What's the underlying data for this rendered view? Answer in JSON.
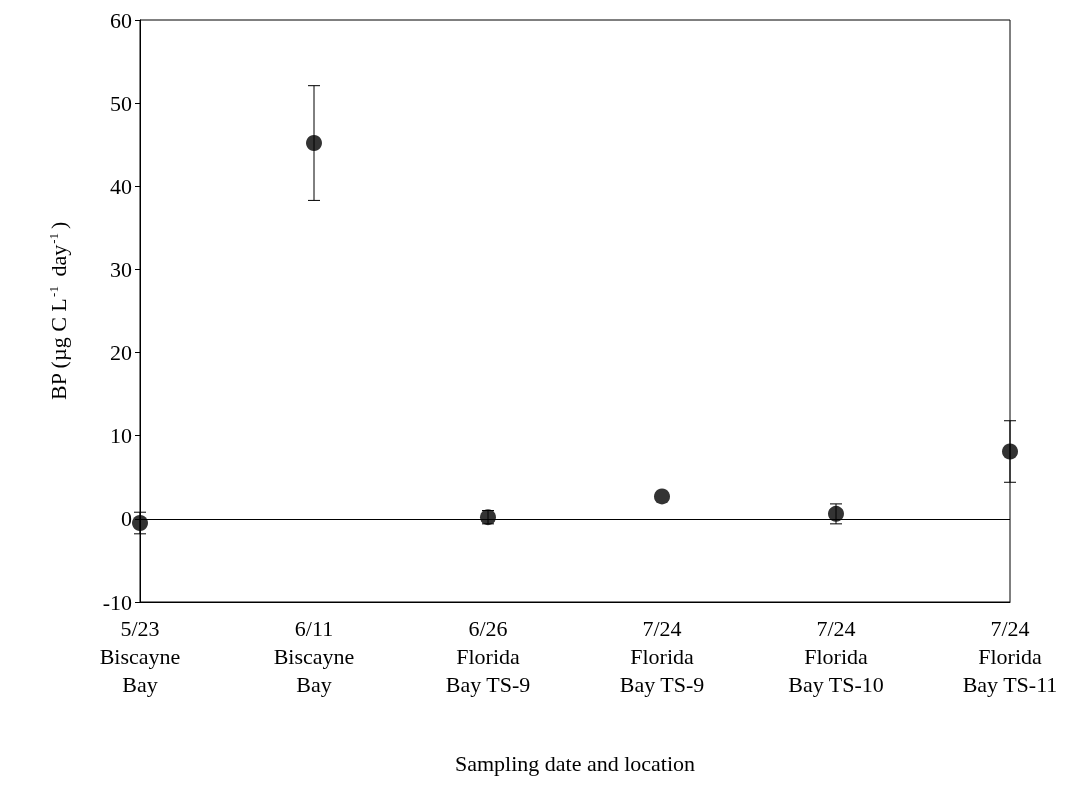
{
  "chart_data": {
    "type": "scatter",
    "xlabel": "Sampling date and location",
    "ylabel": "BP (µg C L$^{-1}$ day$^{-1}$)",
    "categories": [
      "5/23\nBiscayne\nBay",
      "6/11\nBiscayne\nBay",
      "6/26\nFlorida\nBay TS-9",
      "7/24\nFlorida\nBay TS-9",
      "7/24\nFlorida\nBay TS-10",
      "7/24\nFlorida\nBay TS-11"
    ],
    "series": [
      {
        "color": "#000000",
        "values": [
          -0.5,
          45.2,
          0.2,
          2.7,
          0.6,
          8.1
        ],
        "errors": [
          1.3,
          6.9,
          0.8,
          null,
          1.2,
          3.7
        ]
      }
    ],
    "ylim": [
      -10,
      60
    ],
    "yticks": [
      -10,
      0,
      10,
      20,
      30,
      40,
      50,
      60
    ],
    "ref_lines": [
      {
        "axis": "y",
        "value": 0,
        "color": "#000000"
      }
    ],
    "marker": "circle",
    "grid": false
  }
}
